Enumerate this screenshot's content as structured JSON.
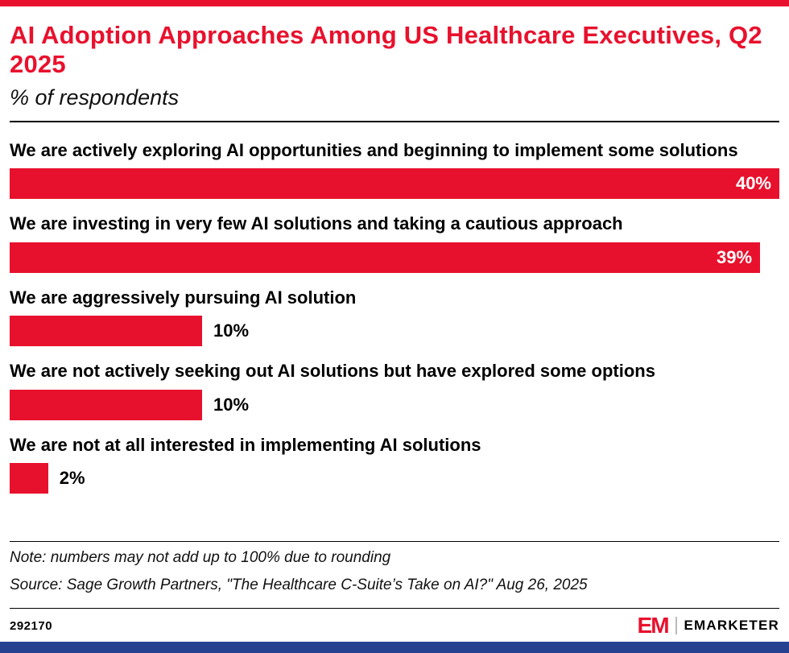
{
  "colors": {
    "accent_red": "#e8112d",
    "footer_blue": "#26418f",
    "text_black": "#000000"
  },
  "header": {
    "title": "AI Adoption Approaches Among US Healthcare Executives, Q2 2025",
    "subtitle": "% of respondents"
  },
  "chart_data": {
    "type": "bar",
    "orientation": "horizontal",
    "title": "AI Adoption Approaches Among US Healthcare Executives, Q2 2025",
    "subtitle": "% of respondents",
    "unit": "%",
    "xlim": [
      0,
      40
    ],
    "grid": false,
    "legend": false,
    "categories": [
      "We are actively exploring AI opportunities and beginning to implement some solutions",
      "We are investing in very few AI solutions and taking a cautious approach",
      "We are aggressively pursuing AI solution",
      "We are not actively seeking out AI solutions but have explored some options",
      "We are not at all interested in implementing AI solutions"
    ],
    "values": [
      40,
      39,
      10,
      10,
      2
    ],
    "rows": [
      {
        "label": "We are actively exploring AI opportunities and beginning to implement some solutions",
        "value": 40,
        "value_label": "40%",
        "value_label_position": "inside"
      },
      {
        "label": "We are investing in very few AI solutions and taking a cautious approach",
        "value": 39,
        "value_label": "39%",
        "value_label_position": "inside"
      },
      {
        "label": "We are aggressively pursuing AI solution",
        "value": 10,
        "value_label": "10%",
        "value_label_position": "outside"
      },
      {
        "label": "We are not actively seeking out AI solutions but have explored some options",
        "value": 10,
        "value_label": "10%",
        "value_label_position": "outside"
      },
      {
        "label": "We are not at all interested in implementing AI solutions",
        "value": 2,
        "value_label": "2%",
        "value_label_position": "outside"
      }
    ]
  },
  "footnotes": {
    "note": "Note: numbers may not add up to 100% due to rounding",
    "source": "Source: Sage Growth Partners, \"The Healthcare C-Suite’s Take on AI?\" Aug 26, 2025"
  },
  "footer": {
    "chart_id": "292170",
    "logo_mark": "EM",
    "logo_text": "EMARKETER"
  }
}
